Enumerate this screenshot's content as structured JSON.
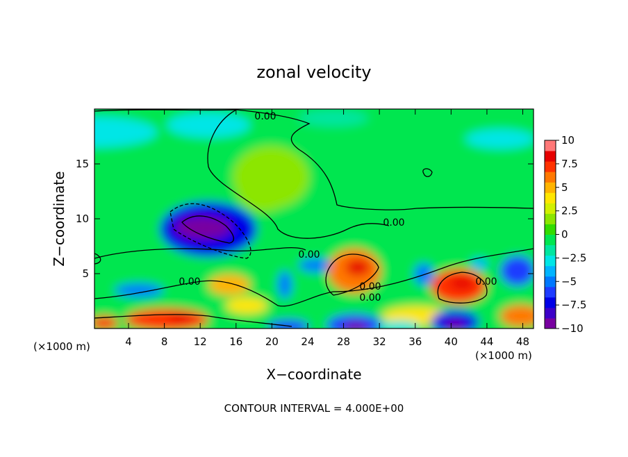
{
  "chart_data": {
    "type": "contour",
    "title": "zonal velocity",
    "xlabel": "X−coordinate",
    "ylabel": "Z−coordinate",
    "x_units": [
      "(×1000 m)",
      "(×1000 m)"
    ],
    "footnote": "CONTOUR INTERVAL = 4.000E+00",
    "xlim": [
      0.2,
      49.2
    ],
    "ylim": [
      0,
      20
    ],
    "xticks": [
      4,
      8,
      12,
      16,
      20,
      24,
      28,
      32,
      36,
      40,
      44,
      48
    ],
    "yticks": [
      5,
      10,
      15
    ],
    "contour_labels": [
      "0.00",
      "0.00",
      "0.00",
      "0.00",
      "0.00",
      "0.00",
      "0.00"
    ],
    "colorbar": {
      "lim": [
        -10,
        10
      ],
      "ticks": [
        10,
        7.5,
        5,
        2.5,
        0,
        -2.5,
        -5,
        -7.5,
        -10
      ],
      "colors": [
        "#7800a0",
        "#3c00c8",
        "#0000e6",
        "#1e3cff",
        "#0078ff",
        "#00b4ff",
        "#00e6e6",
        "#00e6a0",
        "#00e650",
        "#32dc00",
        "#8ce600",
        "#d2f000",
        "#ffe600",
        "#ffb400",
        "#ff7800",
        "#ff3200",
        "#e60000",
        "#ff7878"
      ]
    }
  }
}
